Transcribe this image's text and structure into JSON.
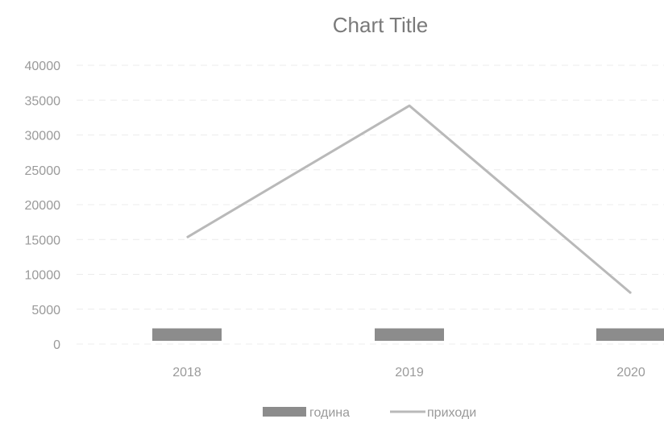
{
  "chart_data": {
    "type": "bar",
    "title": "Chart Title",
    "categories": [
      "2018",
      "2019",
      "2020"
    ],
    "ylim": [
      0,
      40000
    ],
    "yticks": [
      0,
      5000,
      10000,
      15000,
      20000,
      25000,
      30000,
      35000,
      40000
    ],
    "grid": true,
    "legend_position": "bottom",
    "series": [
      {
        "name": "година",
        "type": "bar",
        "color": "#8c8c8c",
        "values": [
          2018,
          2019,
          2020
        ]
      },
      {
        "name": "приходи",
        "type": "line",
        "color": "#b9b9b9",
        "values": [
          15300,
          34200,
          7300
        ]
      }
    ]
  }
}
